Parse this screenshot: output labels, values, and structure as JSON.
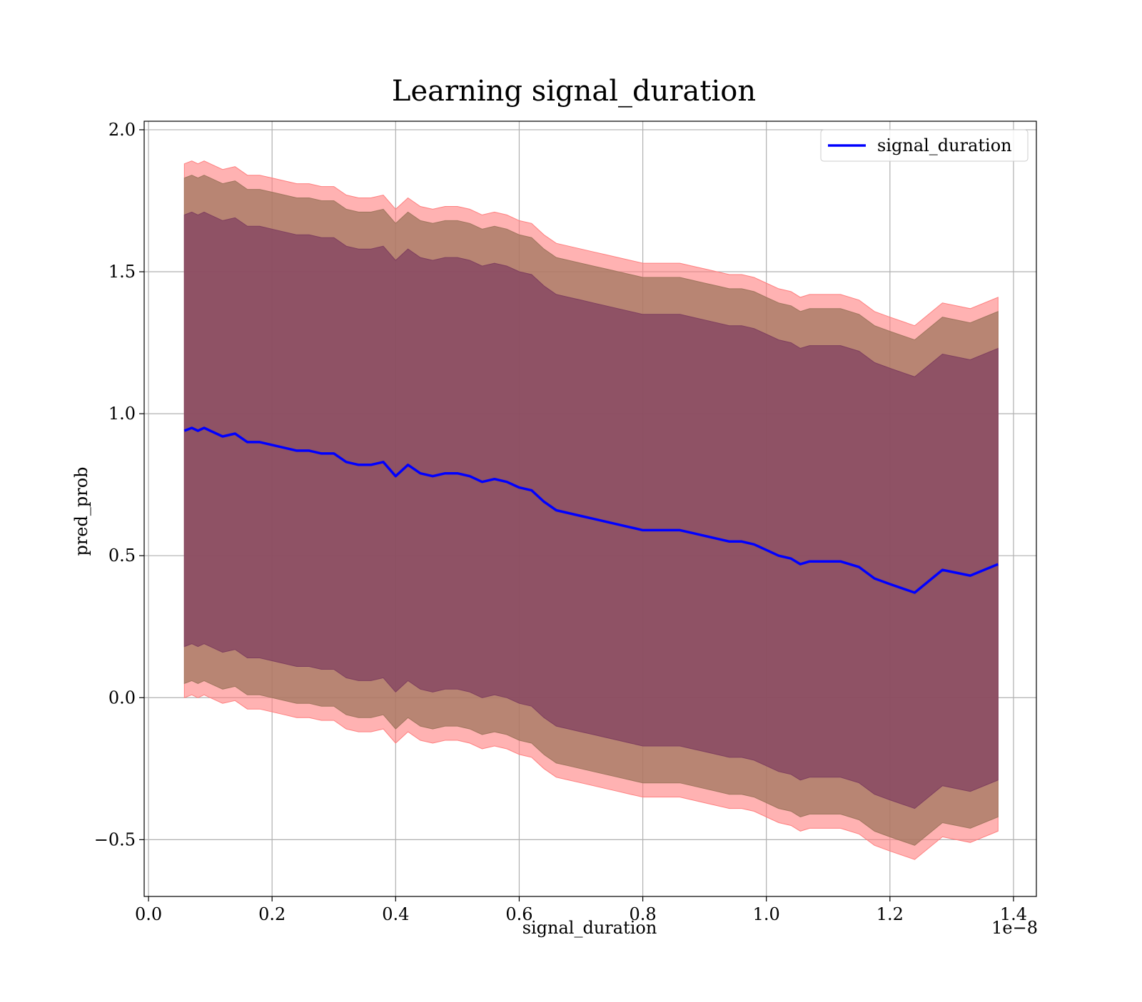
{
  "chart_data": {
    "type": "line",
    "title": "Learning signal_duration",
    "xlabel": "signal_duration",
    "ylabel": "pred_prob",
    "x_offset_label": "1e−8",
    "xlim": [
      -0.007,
      1.437
    ],
    "ylim": [
      -0.7,
      2.03
    ],
    "xticks": [
      0.0,
      0.2,
      0.4,
      0.6,
      0.8,
      1.0,
      1.2,
      1.4
    ],
    "xtick_labels": [
      "0.0",
      "0.2",
      "0.4",
      "0.6",
      "0.8",
      "1.0",
      "1.2",
      "1.4"
    ],
    "yticks": [
      -0.5,
      0.0,
      0.5,
      1.0,
      1.5,
      2.0
    ],
    "ytick_labels": [
      "−0.5",
      "0.0",
      "0.5",
      "1.0",
      "1.5",
      "2.0"
    ],
    "grid": true,
    "legend": {
      "position": "top-right",
      "entries": [
        "signal_duration"
      ]
    },
    "colors": {
      "line": "#0000ff",
      "band_outer": "#ff7f7f",
      "band_middle": "#a0765e",
      "band_inner": "#7f3f5f",
      "grid": "#b0b0b0"
    },
    "series": [
      {
        "name": "signal_duration",
        "x": [
          0.058,
          0.07,
          0.08,
          0.09,
          0.1,
          0.12,
          0.14,
          0.16,
          0.18,
          0.2,
          0.22,
          0.24,
          0.26,
          0.28,
          0.3,
          0.32,
          0.34,
          0.36,
          0.38,
          0.4,
          0.42,
          0.44,
          0.46,
          0.48,
          0.5,
          0.52,
          0.54,
          0.56,
          0.58,
          0.6,
          0.62,
          0.64,
          0.66,
          0.68,
          0.7,
          0.72,
          0.74,
          0.76,
          0.78,
          0.8,
          0.82,
          0.84,
          0.86,
          0.88,
          0.9,
          0.92,
          0.94,
          0.96,
          0.98,
          1.0,
          1.02,
          1.04,
          1.055,
          1.07,
          1.09,
          1.12,
          1.15,
          1.175,
          1.2,
          1.24,
          1.285,
          1.33,
          1.375
        ],
        "y": [
          0.94,
          0.95,
          0.94,
          0.95,
          0.94,
          0.92,
          0.93,
          0.9,
          0.9,
          0.89,
          0.88,
          0.87,
          0.87,
          0.86,
          0.86,
          0.83,
          0.82,
          0.82,
          0.83,
          0.78,
          0.82,
          0.79,
          0.78,
          0.79,
          0.79,
          0.78,
          0.76,
          0.77,
          0.76,
          0.74,
          0.73,
          0.69,
          0.66,
          0.65,
          0.64,
          0.63,
          0.62,
          0.61,
          0.6,
          0.59,
          0.59,
          0.59,
          0.59,
          0.58,
          0.57,
          0.56,
          0.55,
          0.55,
          0.54,
          0.52,
          0.5,
          0.49,
          0.47,
          0.48,
          0.48,
          0.48,
          0.46,
          0.42,
          0.4,
          0.37,
          0.45,
          0.43,
          0.47
        ]
      }
    ],
    "bands": [
      {
        "name": "outer",
        "fill": "#ff7f7f",
        "opacity": 0.6,
        "upper_offset": 0.94,
        "lower_offset": 0.94
      },
      {
        "name": "middle",
        "fill": "#a0765e",
        "opacity": 0.75,
        "upper_offset": 0.89,
        "lower_offset": 0.89
      },
      {
        "name": "inner",
        "fill": "#7f3f5f",
        "opacity": 0.72,
        "upper_offset": 0.76,
        "lower_offset": 0.76
      }
    ]
  }
}
